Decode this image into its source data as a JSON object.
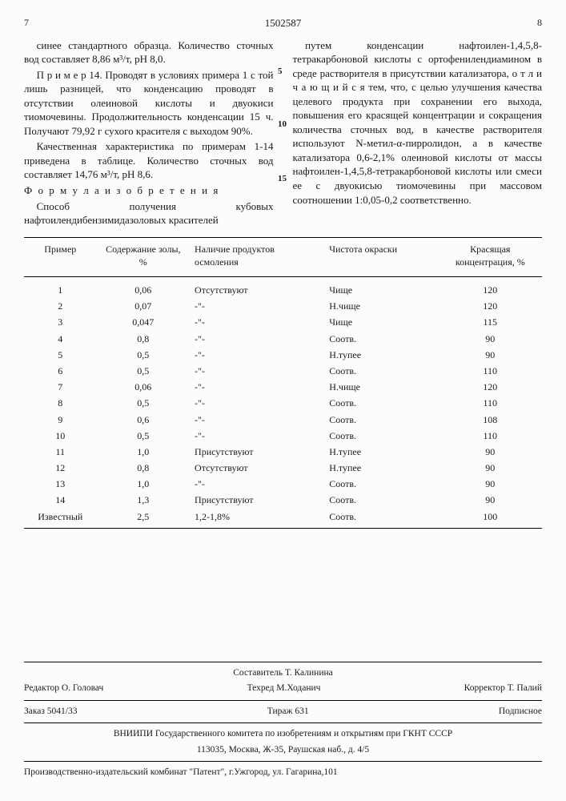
{
  "header": {
    "page_left": "7",
    "patent_number": "1502587",
    "page_right": "8"
  },
  "col_left": {
    "p1": "синее стандартного образца. Количество сточных вод составляет 8,86 м³/т, pH 8,0.",
    "p2": "П р и м е р 14. Проводят в условиях примера 1 с той лишь разницей, что конденсацию проводят в отсутствии олеиновой кислоты и двуокиси тиомочевины. Продолжительность конденсации 15 ч. Получают 79,92 г сухого красителя с выходом 90%.",
    "p3": "Качественная характеристика по примерам 1-14 приведена в таблице. Количество сточных вод составляет 14,76 м³/т, pH 8,6.",
    "formula_label": "Ф о р м у л а  и з о б р е т е н и я",
    "p4": "Способ получения кубовых нафтоилендибензимидазоловых красителей"
  },
  "col_right": {
    "p1": "путем конденсации нафтоилен-1,4,5,8-тетракарбоновой кислоты с ортофенилендиамином в среде растворителя в присутствии катализатора, о т л и ч а ю щ и й с я  тем, что, с целью улучшения качества целевого продукта при сохранении его выхода, повышения его красящей концентрации и сокращения количества сточных вод, в качестве растворителя используют N-метил-α-пирролидон, а в качестве катализатора 0,6-2,1% олеиновой кислоты от массы нафтоилен-1,4,5,8-тетракарбоновой кислоты или смеси ее с двуокисью тиомочевины при массовом соотношении 1:0,05-0,2 соответственно."
  },
  "line_numbers": [
    "5",
    "10",
    "15"
  ],
  "table": {
    "columns": [
      "Пример",
      "Содержание золы, %",
      "Наличие продуктов осмоления",
      "Чистота окраски",
      "Красящая концентрация, %"
    ],
    "rows": [
      [
        "1",
        "0,06",
        "Отсутствуют",
        "Чище",
        "120"
      ],
      [
        "2",
        "0,07",
        "-\"-",
        "Н.чище",
        "120"
      ],
      [
        "3",
        "0,047",
        "-\"-",
        "Чище",
        "115"
      ],
      [
        "4",
        "0,8",
        "-\"-",
        "Соотв.",
        "90"
      ],
      [
        "5",
        "0,5",
        "-\"-",
        "Н.тупее",
        "90"
      ],
      [
        "6",
        "0,5",
        "-\"-",
        "Соотв.",
        "110"
      ],
      [
        "7",
        "0,06",
        "-\"-",
        "Н.чище",
        "120"
      ],
      [
        "8",
        "0,5",
        "-\"-",
        "Соотв.",
        "110"
      ],
      [
        "9",
        "0,6",
        "-\"-",
        "Соотв.",
        "108"
      ],
      [
        "10",
        "0,5",
        "-\"-",
        "Соотв.",
        "110"
      ],
      [
        "11",
        "1,0",
        "Присутствуют",
        "Н.тупее",
        "90"
      ],
      [
        "12",
        "0,8",
        "Отсутствуют",
        "Н.тупее",
        "90"
      ],
      [
        "13",
        "1,0",
        "-\"-",
        "Соотв.",
        "90"
      ],
      [
        "14",
        "1,3",
        "Присутствуют",
        "Соотв.",
        "90"
      ],
      [
        "Известный",
        "2,5",
        "1,2-1,8%",
        "Соотв.",
        "100"
      ]
    ]
  },
  "footer": {
    "compiler": "Составитель Т. Калинина",
    "editor": "Редактор О. Головач",
    "tech_editor": "Техред М.Ходанич",
    "corrector": "Корректор Т. Палий",
    "order": "Заказ 5041/33",
    "circulation": "Тираж 631",
    "subscription": "Подписное",
    "org1": "ВНИИПИ Государственного комитета по изобретениям и открытиям при ГКНТ СССР",
    "addr1": "113035, Москва, Ж-35, Раушская наб., д. 4/5",
    "org2": "Производственно-издательский комбинат \"Патент\", г.Ужгород, ул. Гагарина,101"
  }
}
